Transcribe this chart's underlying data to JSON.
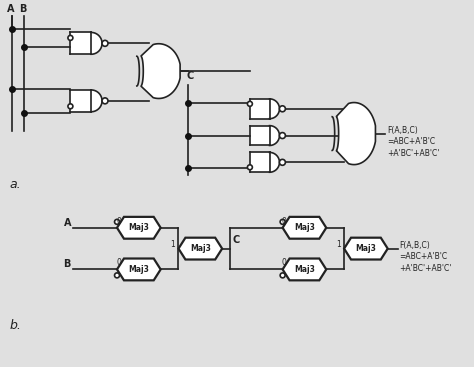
{
  "background_color": "#e0e0e0",
  "line_color": "#222222",
  "gate_fill": "#ffffff",
  "gate_edge": "#222222",
  "dot_color": "#111111",
  "text_color": "#222222",
  "label_a": "A",
  "label_b": "B",
  "label_c": "C",
  "label_fa": "a.",
  "label_fb": "b.",
  "formula": "F(A,B,C)\n=ABC+A'B'C\n+A'BC'+AB'C'",
  "formula2": "F(A,B,C)\n=ABC+A'B'C\n+A'BC'+AB'C'"
}
